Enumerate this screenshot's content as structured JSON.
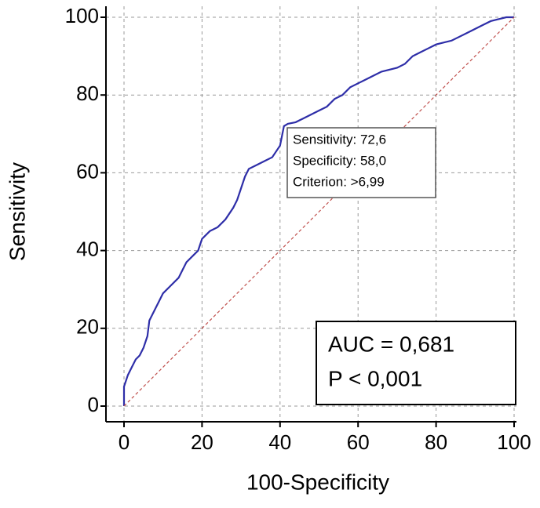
{
  "chart_data": {
    "type": "line",
    "xlabel": "100-Specificity",
    "ylabel": "Sensitivity",
    "xlim": [
      0,
      100
    ],
    "ylim": [
      0,
      100
    ],
    "xticks": [
      0,
      20,
      40,
      60,
      80,
      100
    ],
    "yticks": [
      0,
      20,
      40,
      60,
      80,
      100
    ],
    "grid": true,
    "series": [
      {
        "color": "#2e2ea8",
        "x": [
          0,
          0,
          1,
          2,
          3,
          4,
          5,
          6,
          6.5,
          8,
          9,
          10,
          12,
          14,
          15,
          16,
          18,
          19,
          20,
          22,
          24,
          26,
          28,
          29,
          30,
          31,
          32,
          34,
          36,
          38,
          40,
          41,
          42,
          44,
          46,
          48,
          50,
          52,
          54,
          56,
          58,
          60,
          62,
          64,
          66,
          68,
          70,
          72,
          74,
          76,
          78,
          80,
          82,
          84,
          86,
          88,
          90,
          92,
          94,
          96,
          98,
          100
        ],
        "values": [
          0,
          5,
          8,
          10,
          12,
          13,
          15,
          18,
          22,
          25,
          27,
          29,
          31,
          33,
          35,
          37,
          39,
          40,
          43,
          45,
          46,
          48,
          51,
          53,
          56,
          59,
          61,
          62,
          63,
          64,
          67,
          72,
          72.6,
          73,
          74,
          75,
          76,
          77,
          79,
          80,
          82,
          83,
          84,
          85,
          86,
          86.5,
          87,
          88,
          90,
          91,
          92,
          93,
          93.5,
          94,
          95,
          96,
          97,
          98,
          99,
          99.5,
          100,
          100
        ]
      },
      {
        "color": "#c0504d",
        "dashed": true,
        "x": [
          0,
          100
        ],
        "values": [
          0,
          100
        ]
      }
    ],
    "annotations": [
      "Sensitivity: 72,6",
      "Specificity: 58,0",
      "Criterion: >6,99"
    ],
    "stats": [
      "AUC = 0,681",
      "P < 0,001"
    ]
  }
}
